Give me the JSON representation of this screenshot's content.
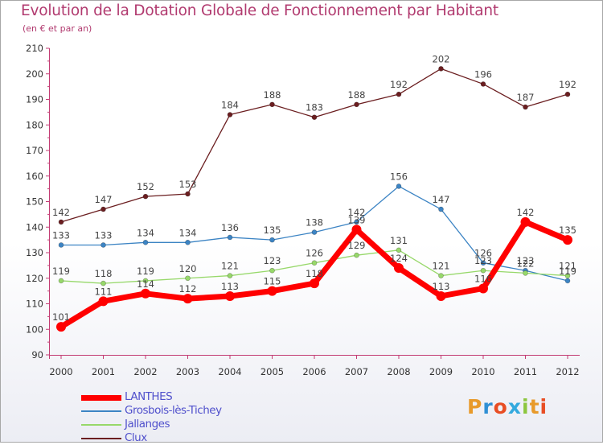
{
  "chart_data": {
    "type": "line",
    "title": "Evolution de la Dotation Globale de Fonctionnement par Habitant",
    "subtitle": "(en € et par an)",
    "xlabel": "",
    "ylabel": "",
    "ylim": [
      90,
      210
    ],
    "yticks": [
      90,
      100,
      110,
      120,
      130,
      140,
      150,
      160,
      170,
      180,
      190,
      200,
      210
    ],
    "grid": false,
    "legend_position": "bottom-left",
    "categories": [
      "2000",
      "2001",
      "2002",
      "2003",
      "2004",
      "2005",
      "2006",
      "2007",
      "2008",
      "2009",
      "2010",
      "2011",
      "2012"
    ],
    "series": [
      {
        "name": "LANTHES",
        "color": "#ff0000",
        "values": [
          101,
          111,
          114,
          112,
          113,
          115,
          118,
          139,
          124,
          113,
          116,
          142,
          135
        ]
      },
      {
        "name": "Grosbois-lès-Tichey",
        "color": "#3c84c4",
        "values": [
          133,
          133,
          134,
          134,
          136,
          135,
          138,
          142,
          156,
          147,
          126,
          123,
          119
        ]
      },
      {
        "name": "Jallanges",
        "color": "#97d86a",
        "values": [
          119,
          118,
          119,
          120,
          121,
          123,
          126,
          129,
          131,
          121,
          123,
          122,
          121
        ]
      },
      {
        "name": "Clux",
        "color": "#6b1e20",
        "values": [
          142,
          147,
          152,
          153,
          184,
          188,
          183,
          188,
          192,
          202,
          196,
          187,
          192
        ]
      }
    ]
  },
  "branding": {
    "logo_text": "Proxiti",
    "letter_colors": [
      "#e89a2b",
      "#2f8fd4",
      "#e84d24",
      "#33a9de",
      "#8cc63e",
      "#e89a2b",
      "#e84d24"
    ]
  }
}
